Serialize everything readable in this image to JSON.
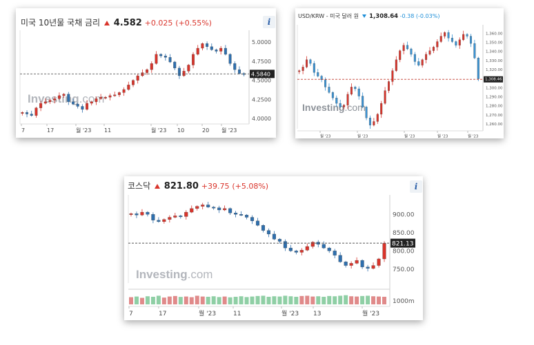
{
  "panels": {
    "us10y": {
      "title": "미국 10년물 국채 금리",
      "price": "4.582",
      "change": "+0.025",
      "change_pct": "(+0.55%)",
      "last_label": "4.5840",
      "watermark_brand": "Investing",
      "watermark_suffix": ".com",
      "info_label": "i",
      "up_color": "#d9342b",
      "down_color": "#2e6fae"
    },
    "usdkrw": {
      "title": "USD/KRW - 미국 달러 원",
      "price": "1,308.64",
      "change": "-0.38",
      "change_pct": "(-0.03%)",
      "last_label": "1,308.46",
      "watermark_brand": "Investing",
      "watermark_suffix": ".com",
      "up_color": "#d9342b",
      "down_color": "#3a93d4"
    },
    "kosdaq": {
      "title": "코스닥",
      "price": "821.80",
      "change": "+39.75",
      "change_pct": "(+5.08%)",
      "last_label": "821.13",
      "volume_label": "1000m",
      "watermark_brand": "Investing",
      "watermark_suffix": ".com",
      "info_label": "i",
      "up_color": "#d9342b",
      "down_color": "#2e6fae"
    }
  },
  "chart_data": [
    {
      "type": "candlestick",
      "title": "미국 10년물 국채 금리",
      "y_ticks": [
        "5.0000",
        "4.7500",
        "4.5000",
        "4.2500",
        "4.0000"
      ],
      "ylim": [
        3.93,
        5.1
      ],
      "x_ticks": [
        "7",
        "17",
        "월 '23",
        "11",
        "월 '23",
        "10",
        "20",
        "월 '23"
      ],
      "last_value": 4.584,
      "close": [
        4.08,
        4.06,
        4.04,
        4.14,
        4.2,
        4.22,
        4.24,
        4.26,
        4.3,
        4.32,
        4.22,
        4.19,
        4.16,
        4.12,
        4.2,
        4.22,
        4.26,
        4.28,
        4.28,
        4.3,
        4.31,
        4.34,
        4.38,
        4.44,
        4.5,
        4.56,
        4.6,
        4.64,
        4.72,
        4.84,
        4.82,
        4.8,
        4.74,
        4.66,
        4.56,
        4.62,
        4.7,
        4.84,
        4.92,
        4.98,
        4.94,
        4.9,
        4.88,
        4.92,
        4.84,
        4.72,
        4.64,
        4.59,
        4.58
      ]
    },
    {
      "type": "candlestick",
      "title": "USD/KRW - 미국 달러 원",
      "y_ticks": [
        "1,360.00",
        "1,350.00",
        "1,340.00",
        "1,330.00",
        "1,320.00",
        "1,310.00",
        "1,300.00",
        "1,290.00",
        "1,280.00",
        "1,270.00",
        "1,260.00"
      ],
      "ylim": [
        1254,
        1364
      ],
      "x_ticks": [
        "월 '23",
        "월 '23",
        "월 '23",
        "월 '23",
        "월 '23"
      ],
      "last_value": 1308.46,
      "close": [
        1318,
        1322,
        1330,
        1326,
        1316,
        1312,
        1308,
        1300,
        1294,
        1288,
        1282,
        1278,
        1280,
        1292,
        1300,
        1298,
        1290,
        1278,
        1266,
        1258,
        1262,
        1270,
        1282,
        1296,
        1306,
        1318,
        1330,
        1340,
        1346,
        1342,
        1336,
        1328,
        1324,
        1330,
        1336,
        1340,
        1344,
        1350,
        1356,
        1360,
        1354,
        1350,
        1346,
        1352,
        1358,
        1356,
        1348,
        1332,
        1309
      ]
    },
    {
      "type": "candlestick",
      "title": "코스닥",
      "y_ticks": [
        "900.00",
        "850.00",
        "800.00",
        "750.00"
      ],
      "ylim": [
        712,
        942
      ],
      "x_ticks": [
        "7",
        "17",
        "월 '23",
        "11",
        "월 '23",
        "13",
        "월 '23"
      ],
      "last_value": 821.13,
      "volume_ticks": [
        "1000m"
      ],
      "close": [
        902,
        898,
        906,
        900,
        884,
        880,
        886,
        892,
        896,
        894,
        906,
        916,
        922,
        926,
        920,
        918,
        912,
        916,
        904,
        900,
        898,
        892,
        882,
        870,
        856,
        846,
        832,
        826,
        808,
        800,
        796,
        802,
        812,
        824,
        818,
        808,
        800,
        788,
        770,
        760,
        766,
        774,
        756,
        752,
        760,
        778,
        821
      ],
      "volume": [
        0.55,
        0.6,
        0.5,
        0.62,
        0.58,
        0.66,
        0.52,
        0.6,
        0.64,
        0.57,
        0.6,
        0.55,
        0.66,
        0.6,
        0.58,
        0.62,
        0.56,
        0.6,
        0.54,
        0.58,
        0.62,
        0.56,
        0.6,
        0.64,
        0.66,
        0.58,
        0.62,
        0.6,
        0.66,
        0.62,
        0.58,
        0.64,
        0.66,
        0.6,
        0.62,
        0.58,
        0.64,
        0.62,
        0.66,
        0.7,
        0.62,
        0.6,
        0.64,
        0.66,
        0.62,
        0.6,
        0.58
      ]
    }
  ]
}
